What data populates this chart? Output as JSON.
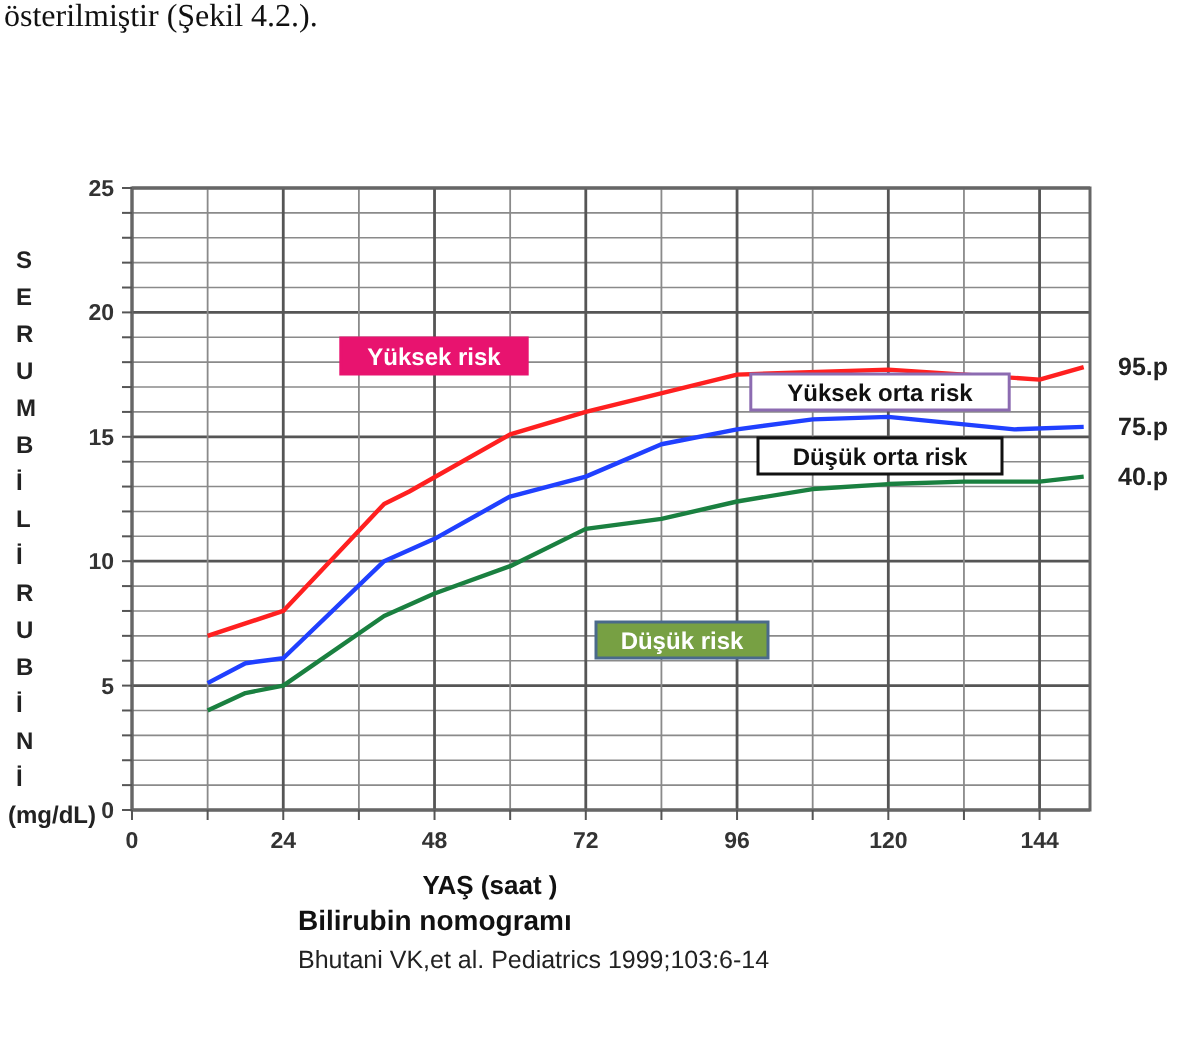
{
  "chart_data": {
    "type": "line",
    "title": "Bilirubin nomogramı",
    "xlabel": "YAŞ (saat )",
    "ylabel": "SERUMBİLİRUBİNİ (mg/dL)",
    "annotations": [
      "Yüksek risk",
      "Yüksek orta risk",
      "Düşük orta risk",
      "Düşük risk",
      "Bhutani VK,et al. Pediatrics 1999;103:6-14",
      "österilmiştir (Şekil 4.2.)."
    ],
    "xlim": [
      0,
      152
    ],
    "xticks": [
      0,
      {
        "value": 12,
        "label": null
      },
      24,
      {
        "value": 36,
        "label": null
      },
      48,
      {
        "value": 60,
        "label": null
      },
      72,
      {
        "value": 84,
        "label": null
      },
      96,
      {
        "value": 108,
        "label": null
      },
      120,
      {
        "value": 132,
        "label": null
      },
      144
    ],
    "ylim": [
      0,
      25
    ],
    "yticks": [
      0,
      {
        "value": 1,
        "label": null
      },
      {
        "value": 2,
        "label": null
      },
      {
        "value": 3,
        "label": null
      },
      {
        "value": 4,
        "label": null
      },
      5,
      {
        "value": 6,
        "label": null
      },
      {
        "value": 7,
        "label": null
      },
      {
        "value": 8,
        "label": null
      },
      {
        "value": 9,
        "label": null
      },
      10,
      {
        "value": 11,
        "label": null
      },
      {
        "value": 12,
        "label": null
      },
      {
        "value": 13,
        "label": null
      },
      {
        "value": 14,
        "label": null
      },
      15,
      {
        "value": 16,
        "label": null
      },
      {
        "value": 17,
        "label": null
      },
      {
        "value": 18,
        "label": null
      },
      {
        "value": 19,
        "label": null
      },
      20,
      {
        "value": 21,
        "label": null
      },
      {
        "value": 22,
        "label": null
      },
      {
        "value": 23,
        "label": null
      },
      {
        "value": 24,
        "label": null
      },
      25
    ],
    "grid": true,
    "legend": false,
    "series": [
      {
        "name": "95.p",
        "color": "#ff2020",
        "x": [
          12,
          24,
          40,
          44,
          60,
          72,
          96,
          120,
          144,
          151
        ],
        "values": [
          7.0,
          8.0,
          12.3,
          12.8,
          15.1,
          16.0,
          17.5,
          17.7,
          17.3,
          17.8
        ]
      },
      {
        "name": "75.p",
        "color": "#2040ff",
        "x": [
          12,
          18,
          24,
          40,
          48,
          60,
          72,
          84,
          96,
          108,
          120,
          132,
          140,
          151
        ],
        "values": [
          5.1,
          5.9,
          6.1,
          10.0,
          10.9,
          12.6,
          13.4,
          14.7,
          15.3,
          15.7,
          15.8,
          15.5,
          15.3,
          15.4
        ]
      },
      {
        "name": "40.p",
        "color": "#1a8040",
        "x": [
          12,
          18,
          24,
          40,
          48,
          60,
          72,
          84,
          96,
          108,
          120,
          132,
          144,
          151
        ],
        "values": [
          4.0,
          4.7,
          5.0,
          7.8,
          8.7,
          9.8,
          11.3,
          11.7,
          12.4,
          12.9,
          13.1,
          13.2,
          13.2,
          13.4
        ]
      }
    ]
  }
}
